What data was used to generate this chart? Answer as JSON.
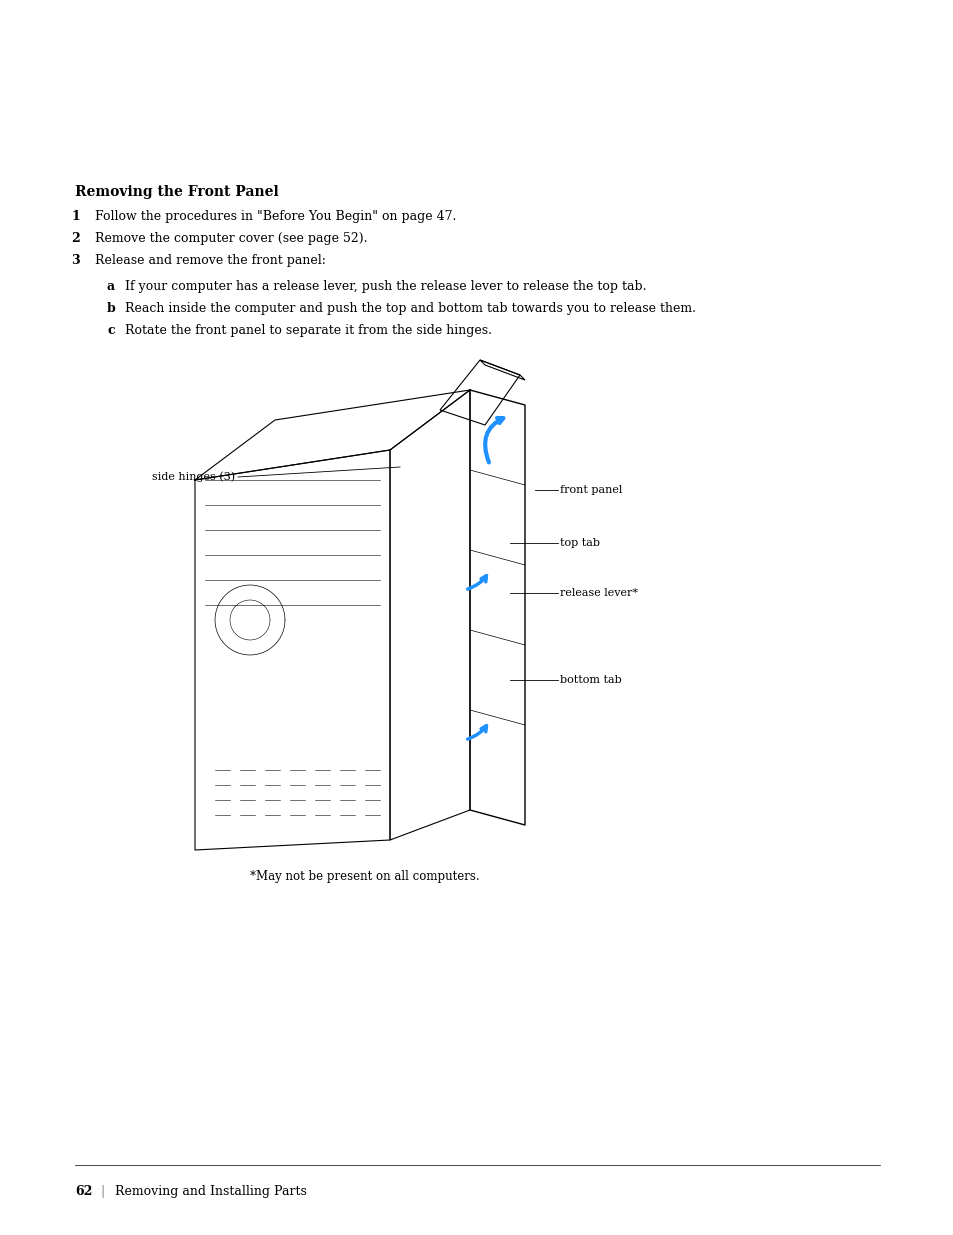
{
  "bg_color": "#ffffff",
  "title": "Removing the Front Panel",
  "steps": [
    {
      "num": "1",
      "text": "Follow the procedures in \"Before You Begin\" on page 47."
    },
    {
      "num": "2",
      "text": "Remove the computer cover (see page 52)."
    },
    {
      "num": "3",
      "text": "Release and remove the front panel:"
    }
  ],
  "substeps": [
    {
      "letter": "a",
      "text": "If your computer has a release lever, push the release lever to release the top tab."
    },
    {
      "letter": "b",
      "text": "Reach inside the computer and push the top and bottom tab towards you to release them."
    },
    {
      "letter": "c",
      "text": "Rotate the front panel to separate it from the side hinges."
    }
  ],
  "callouts": [
    {
      "label": "side hinges (3)",
      "side": "left"
    },
    {
      "label": "front panel",
      "side": "right"
    },
    {
      "label": "top tab",
      "side": "right"
    },
    {
      "label": "release lever*",
      "side": "right"
    },
    {
      "label": "bottom tab",
      "side": "right"
    }
  ],
  "footnote": "*May not be present on all computers.",
  "footer_page": "62",
  "footer_text": "Removing and Installing Parts",
  "text_color": "#000000",
  "title_fontsize": 10,
  "body_fontsize": 9,
  "footer_fontsize": 9
}
